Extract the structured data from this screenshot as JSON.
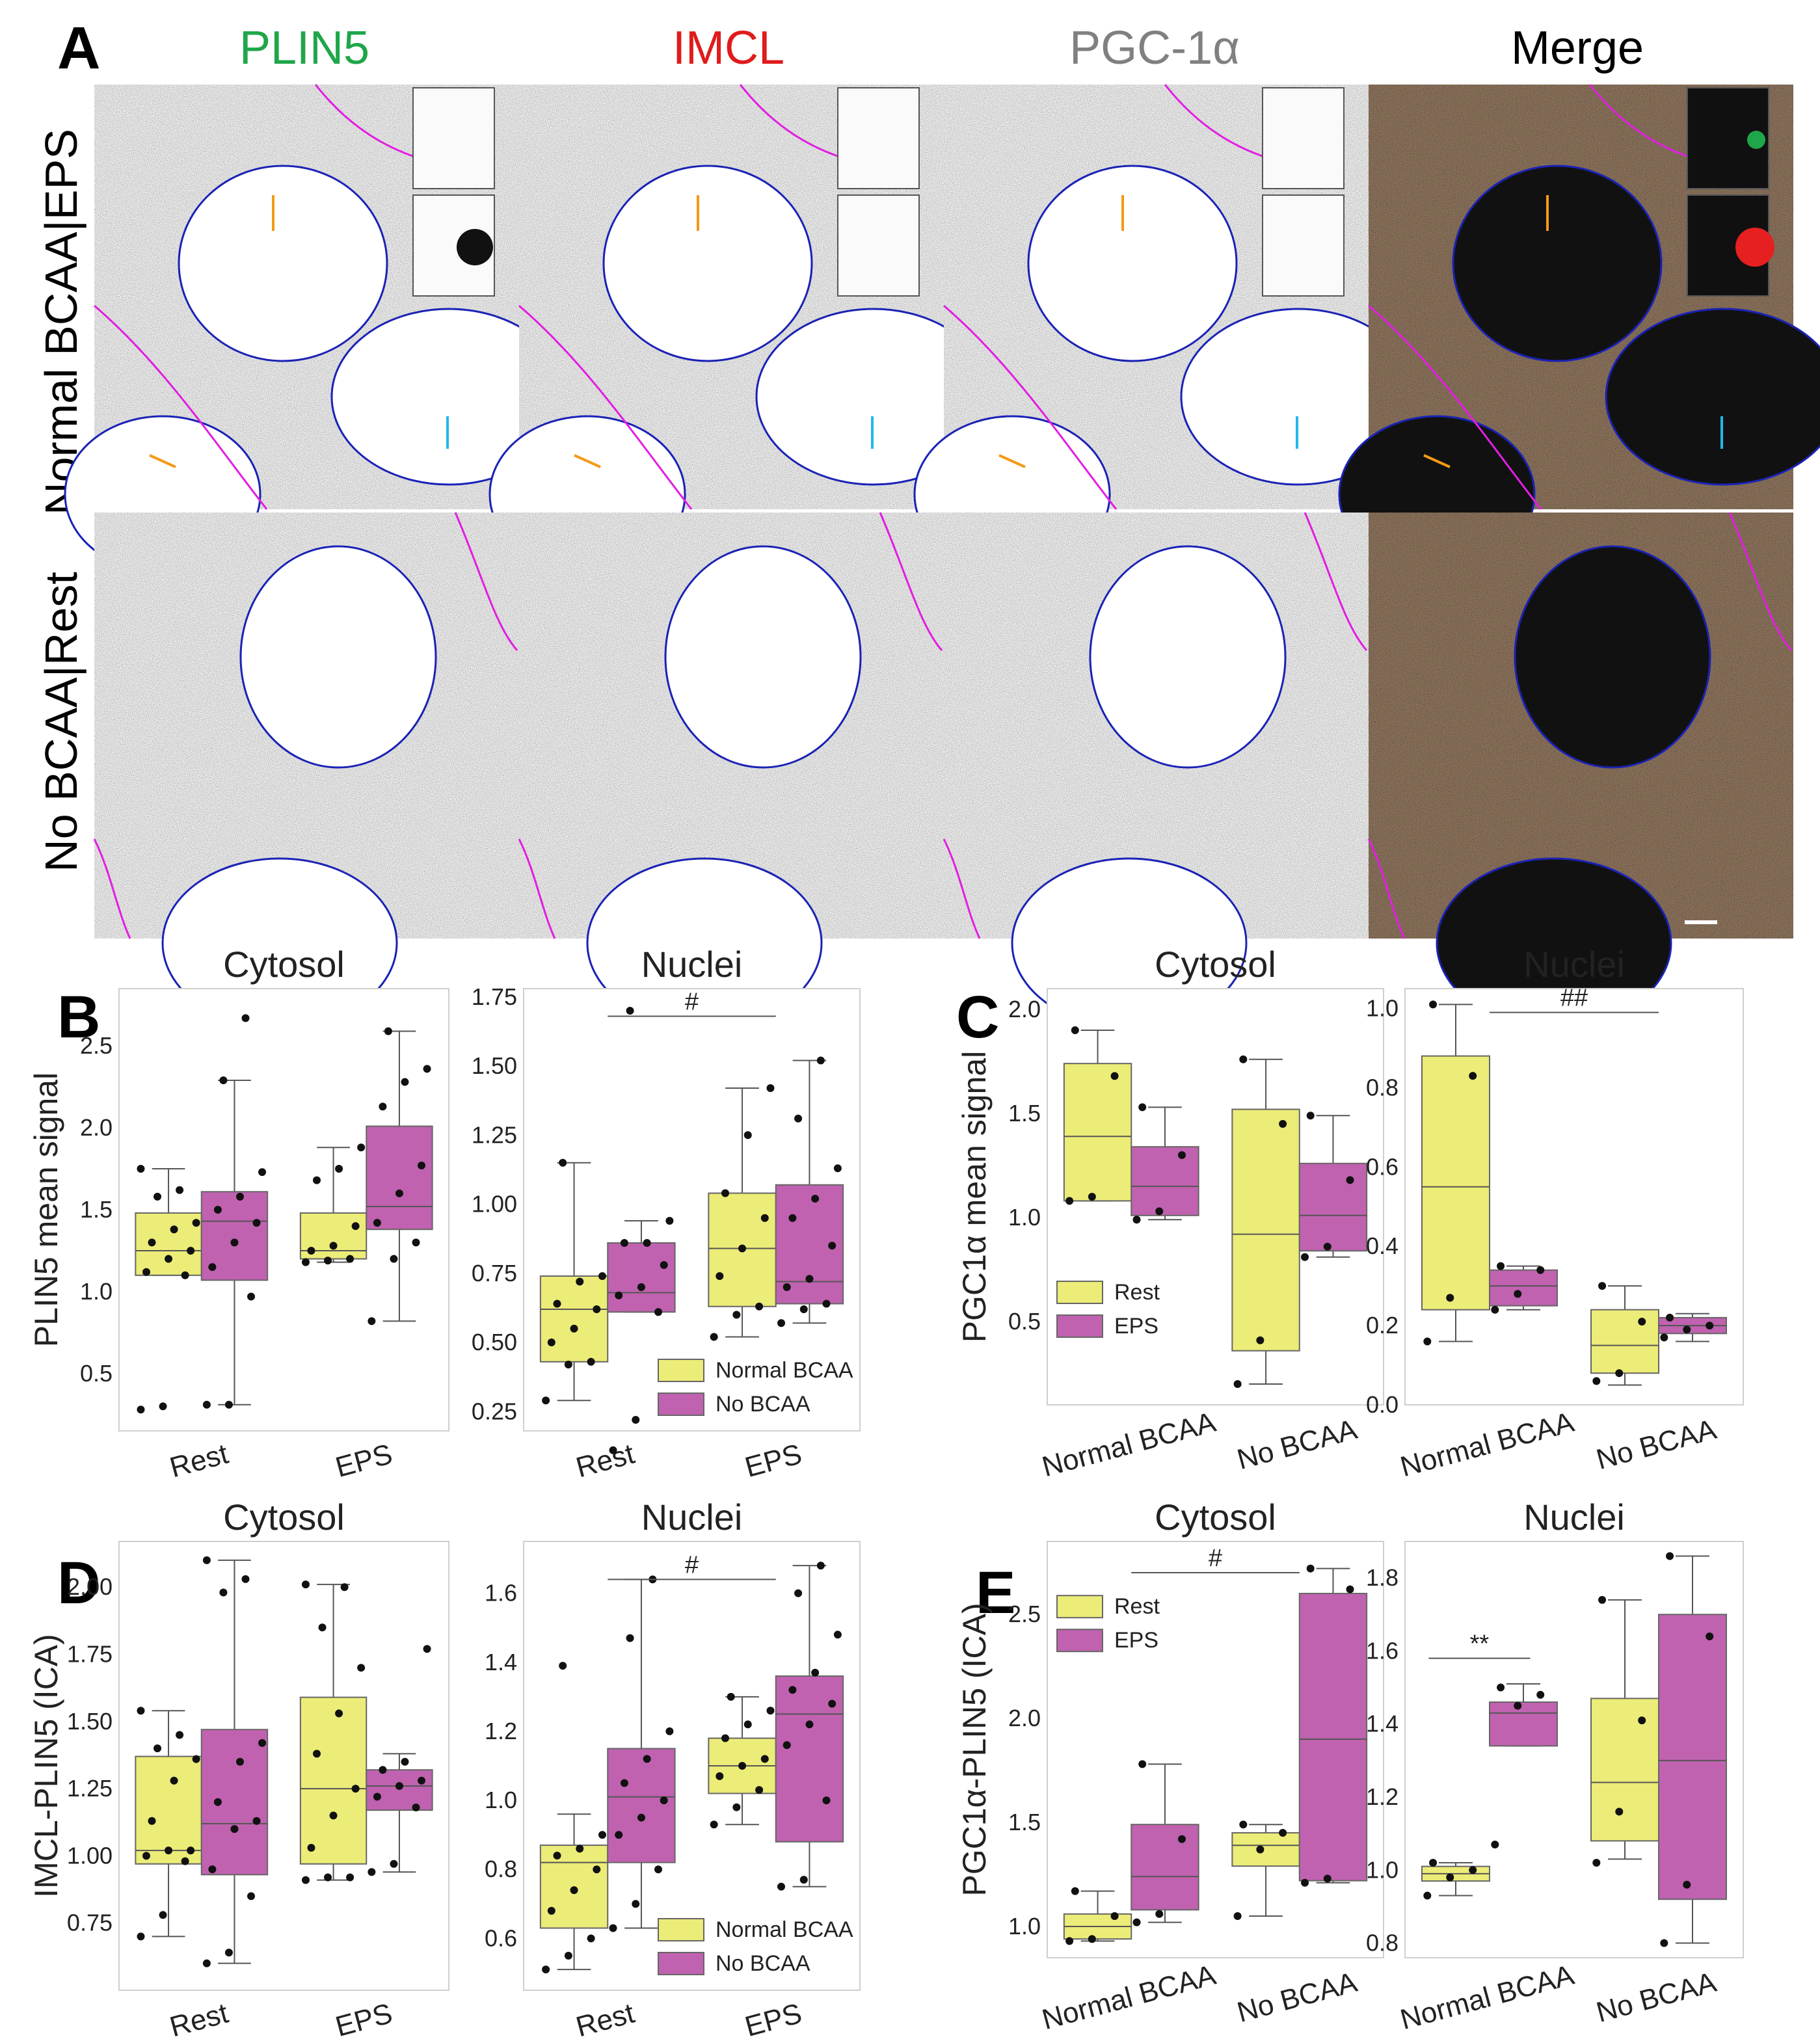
{
  "figure": {
    "panel_labels": [
      "A",
      "B",
      "C",
      "D",
      "E"
    ],
    "columns": [
      {
        "label": "PLIN5",
        "color": "#1fa64a"
      },
      {
        "label": "IMCL",
        "color": "#e01b1b"
      },
      {
        "label": "PGC-1α",
        "color": "#808080"
      },
      {
        "label": "Merge",
        "color": "#000000"
      }
    ],
    "rows": [
      "Normal BCAA|EPS",
      "No BCAA|Rest"
    ],
    "colors": {
      "yellow": "#ecec78",
      "magenta": "#c062b0",
      "nucleus": "#1a22b5",
      "membrane": "#e21ee2",
      "orange": "#f39a18",
      "cyan": "#22b8e8"
    }
  },
  "chart_data": [
    {
      "id": "B-cyto",
      "panel": "B",
      "type": "box",
      "title": "Cytosol",
      "ylabel": "PLIN5 mean signal",
      "categories": [
        "Rest",
        "EPS"
      ],
      "ylim": [
        0.15,
        2.85
      ],
      "yticks": [
        0.5,
        1.0,
        1.5,
        2.0,
        2.5
      ],
      "series": [
        {
          "name": "Normal BCAA",
          "boxes": [
            {
              "q1": 1.1,
              "median": 1.25,
              "q3": 1.48,
              "whislo": 1.1,
              "whishi": 1.75,
              "points": [
                0.28,
                0.3,
                1.1,
                1.12,
                1.2,
                1.25,
                1.3,
                1.38,
                1.42,
                1.58,
                1.62,
                1.75
              ]
            },
            {
              "q1": 1.2,
              "median": 1.25,
              "q3": 1.48,
              "whislo": 1.18,
              "whishi": 1.88,
              "points": [
                1.18,
                1.19,
                1.2,
                1.25,
                1.28,
                1.4,
                1.68,
                1.75,
                1.88
              ]
            }
          ]
        },
        {
          "name": "No BCAA",
          "boxes": [
            {
              "q1": 1.07,
              "median": 1.43,
              "q3": 1.61,
              "whislo": 0.31,
              "whishi": 2.29,
              "points": [
                0.31,
                0.31,
                0.97,
                1.15,
                1.3,
                1.42,
                1.5,
                1.58,
                1.73,
                2.29,
                2.67
              ]
            },
            {
              "q1": 1.38,
              "median": 1.52,
              "q3": 2.01,
              "whislo": 0.82,
              "whishi": 2.59,
              "points": [
                0.82,
                1.2,
                1.3,
                1.42,
                1.6,
                1.77,
                2.13,
                2.28,
                2.36,
                2.59
              ]
            }
          ]
        }
      ]
    },
    {
      "id": "B-nuc",
      "panel": "B",
      "type": "box",
      "title": "Nuclei",
      "ylabel": "",
      "categories": [
        "Rest",
        "EPS"
      ],
      "ylim": [
        0.18,
        1.78
      ],
      "yticks": [
        0.25,
        0.5,
        0.75,
        1.0,
        1.25,
        1.5,
        1.75
      ],
      "legend": [
        "Normal BCAA",
        "No BCAA"
      ],
      "annotation": {
        "text": "#",
        "from": 0,
        "to": 1,
        "y": 1.68
      },
      "series": [
        {
          "name": "Normal BCAA",
          "boxes": [
            {
              "q1": 0.43,
              "median": 0.62,
              "q3": 0.74,
              "whislo": 0.29,
              "whishi": 1.15,
              "points": [
                0.29,
                0.42,
                0.43,
                0.5,
                0.55,
                0.62,
                0.64,
                0.72,
                0.74,
                1.15
              ]
            },
            {
              "q1": 0.63,
              "median": 0.84,
              "q3": 1.04,
              "whislo": 0.52,
              "whishi": 1.42,
              "points": [
                0.52,
                0.6,
                0.63,
                0.74,
                0.84,
                0.95,
                1.04,
                1.25,
                1.42
              ]
            }
          ]
        },
        {
          "name": "No BCAA",
          "boxes": [
            {
              "q1": 0.61,
              "median": 0.68,
              "q3": 0.86,
              "whislo": 0.61,
              "whishi": 0.94,
              "points": [
                0.11,
                0.22,
                0.61,
                0.67,
                0.7,
                0.78,
                0.86,
                0.86,
                0.94,
                1.7
              ]
            },
            {
              "q1": 0.64,
              "median": 0.72,
              "q3": 1.07,
              "whislo": 0.57,
              "whishi": 1.52,
              "points": [
                0.57,
                0.62,
                0.64,
                0.7,
                0.73,
                0.85,
                0.95,
                1.02,
                1.13,
                1.31,
                1.52
              ]
            }
          ]
        }
      ]
    },
    {
      "id": "C-cyto",
      "panel": "C",
      "type": "box",
      "title": "Cytosol",
      "ylabel": "PGC1α mean signal",
      "categories": [
        "Normal BCAA",
        "No BCAA"
      ],
      "ylim": [
        0.1,
        2.1
      ],
      "yticks": [
        0.5,
        1.0,
        1.5,
        2.0
      ],
      "legend": [
        "Rest",
        "EPS"
      ],
      "series": [
        {
          "name": "Rest",
          "boxes": [
            {
              "q1": 1.08,
              "median": 1.39,
              "q3": 1.74,
              "whislo": 1.08,
              "whishi": 1.9,
              "points": [
                1.08,
                1.1,
                1.68,
                1.9
              ]
            },
            {
              "q1": 0.36,
              "median": 0.92,
              "q3": 1.52,
              "whislo": 0.2,
              "whishi": 1.76,
              "points": [
                0.2,
                0.41,
                1.45,
                1.76
              ]
            }
          ]
        },
        {
          "name": "EPS",
          "boxes": [
            {
              "q1": 1.01,
              "median": 1.15,
              "q3": 1.34,
              "whislo": 0.99,
              "whishi": 1.53,
              "points": [
                0.99,
                1.03,
                1.3,
                1.53
              ]
            },
            {
              "q1": 0.84,
              "median": 1.01,
              "q3": 1.26,
              "whislo": 0.81,
              "whishi": 1.49,
              "points": [
                0.81,
                0.86,
                1.18,
                1.49
              ]
            }
          ]
        }
      ]
    },
    {
      "id": "C-nuc",
      "panel": "C",
      "type": "box",
      "title": "Nuclei",
      "ylabel": "",
      "categories": [
        "Normal BCAA",
        "No BCAA"
      ],
      "ylim": [
        0.0,
        1.05
      ],
      "yticks": [
        0.0,
        0.2,
        0.4,
        0.6,
        0.8,
        1.0
      ],
      "annotation": {
        "text": "##",
        "from": 0,
        "to": 1,
        "y": 0.99
      },
      "series": [
        {
          "name": "Rest",
          "boxes": [
            {
              "q1": 0.24,
              "median": 0.55,
              "q3": 0.88,
              "whislo": 0.16,
              "whishi": 1.01,
              "points": [
                0.16,
                0.27,
                0.83,
                1.01
              ]
            },
            {
              "q1": 0.08,
              "median": 0.15,
              "q3": 0.24,
              "whislo": 0.05,
              "whishi": 0.3,
              "points": [
                0.06,
                0.08,
                0.21,
                0.3
              ]
            }
          ]
        },
        {
          "name": "EPS",
          "boxes": [
            {
              "q1": 0.25,
              "median": 0.3,
              "q3": 0.34,
              "whislo": 0.24,
              "whishi": 0.35,
              "points": [
                0.24,
                0.28,
                0.34,
                0.35
              ]
            },
            {
              "q1": 0.18,
              "median": 0.2,
              "q3": 0.22,
              "whislo": 0.16,
              "whishi": 0.23,
              "points": [
                0.17,
                0.19,
                0.2,
                0.22
              ]
            }
          ]
        }
      ]
    },
    {
      "id": "D-cyto",
      "panel": "D",
      "type": "box",
      "title": "Cytosol",
      "ylabel": "IMCL-PLIN5 (ICA)",
      "categories": [
        "Rest",
        "EPS"
      ],
      "ylim": [
        0.5,
        2.17
      ],
      "yticks": [
        0.75,
        1.0,
        1.25,
        1.5,
        1.75,
        2.0
      ],
      "series": [
        {
          "name": "Normal BCAA",
          "boxes": [
            {
              "q1": 0.97,
              "median": 1.02,
              "q3": 1.37,
              "whislo": 0.7,
              "whishi": 1.54,
              "points": [
                0.7,
                0.78,
                0.98,
                1.0,
                1.02,
                1.02,
                1.13,
                1.28,
                1.36,
                1.4,
                1.45,
                1.54
              ]
            },
            {
              "q1": 0.97,
              "median": 1.25,
              "q3": 1.59,
              "whislo": 0.91,
              "whishi": 2.01,
              "points": [
                0.91,
                0.92,
                0.92,
                1.03,
                1.15,
                1.25,
                1.38,
                1.53,
                1.7,
                1.85,
                2.0,
                2.01
              ]
            }
          ]
        },
        {
          "name": "No BCAA",
          "boxes": [
            {
              "q1": 0.93,
              "median": 1.12,
              "q3": 1.47,
              "whislo": 0.6,
              "whishi": 2.1,
              "points": [
                0.6,
                0.64,
                0.85,
                0.95,
                1.1,
                1.13,
                1.2,
                1.35,
                1.42,
                1.98,
                2.03,
                2.1
              ]
            },
            {
              "q1": 1.17,
              "median": 1.26,
              "q3": 1.32,
              "whislo": 0.94,
              "whishi": 1.38,
              "points": [
                0.94,
                0.97,
                1.18,
                1.22,
                1.26,
                1.28,
                1.32,
                1.35,
                1.77
              ]
            }
          ]
        }
      ]
    },
    {
      "id": "D-nuc",
      "panel": "D",
      "type": "box",
      "title": "Nuclei",
      "ylabel": "",
      "categories": [
        "Rest",
        "EPS"
      ],
      "ylim": [
        0.45,
        1.75
      ],
      "yticks": [
        0.6,
        0.8,
        1.0,
        1.2,
        1.4,
        1.6
      ],
      "legend": [
        "Normal BCAA",
        "No BCAA"
      ],
      "annotation": {
        "text": "#",
        "from": 0,
        "to": 1,
        "y": 1.64
      },
      "series": [
        {
          "name": "Normal BCAA",
          "boxes": [
            {
              "q1": 0.63,
              "median": 0.82,
              "q3": 0.87,
              "whislo": 0.51,
              "whishi": 0.96,
              "points": [
                0.51,
                0.55,
                0.6,
                0.68,
                0.74,
                0.8,
                0.84,
                0.86,
                0.9,
                1.39
              ]
            },
            {
              "q1": 1.02,
              "median": 1.1,
              "q3": 1.18,
              "whislo": 0.93,
              "whishi": 1.3,
              "points": [
                0.93,
                0.98,
                1.03,
                1.07,
                1.1,
                1.12,
                1.18,
                1.22,
                1.26,
                1.3
              ]
            }
          ]
        },
        {
          "name": "No BCAA",
          "boxes": [
            {
              "q1": 0.82,
              "median": 1.01,
              "q3": 1.15,
              "whislo": 0.63,
              "whishi": 1.64,
              "points": [
                0.63,
                0.7,
                0.8,
                0.9,
                0.95,
                1.0,
                1.05,
                1.12,
                1.2,
                1.47,
                1.64
              ]
            },
            {
              "q1": 0.88,
              "median": 1.25,
              "q3": 1.36,
              "whislo": 0.75,
              "whishi": 1.68,
              "points": [
                0.75,
                0.77,
                1.0,
                1.16,
                1.22,
                1.28,
                1.32,
                1.37,
                1.48,
                1.6,
                1.68
              ]
            }
          ]
        }
      ]
    },
    {
      "id": "E-cyto",
      "panel": "E",
      "type": "box",
      "title": "Cytosol",
      "ylabel": "PGC1α-PLIN5 (ICA)",
      "categories": [
        "Normal BCAA",
        "No BCAA"
      ],
      "ylim": [
        0.85,
        2.85
      ],
      "yticks": [
        1.0,
        1.5,
        2.0,
        2.5
      ],
      "legend": [
        "Rest",
        "EPS"
      ],
      "annotation": {
        "text": "#",
        "from": 0,
        "to": 1,
        "y": 2.7
      },
      "series": [
        {
          "name": "Rest",
          "boxes": [
            {
              "q1": 0.94,
              "median": 1.0,
              "q3": 1.06,
              "whislo": 0.93,
              "whishi": 1.17,
              "points": [
                0.93,
                0.94,
                1.05,
                1.17
              ]
            },
            {
              "q1": 1.29,
              "median": 1.39,
              "q3": 1.45,
              "whislo": 1.05,
              "whishi": 1.49,
              "points": [
                1.05,
                1.37,
                1.45,
                1.49
              ]
            }
          ]
        },
        {
          "name": "EPS",
          "boxes": [
            {
              "q1": 1.08,
              "median": 1.24,
              "q3": 1.49,
              "whislo": 1.02,
              "whishi": 1.78,
              "points": [
                1.02,
                1.06,
                1.42,
                1.78
              ]
            },
            {
              "q1": 1.22,
              "median": 1.9,
              "q3": 2.6,
              "whislo": 1.21,
              "whishi": 2.72,
              "points": [
                1.21,
                1.23,
                2.62,
                2.72
              ]
            }
          ]
        }
      ]
    },
    {
      "id": "E-nuc",
      "panel": "E",
      "type": "box",
      "title": "Nuclei",
      "ylabel": "",
      "categories": [
        "Normal BCAA",
        "No BCAA"
      ],
      "ylim": [
        0.76,
        1.9
      ],
      "yticks": [
        0.8,
        1.0,
        1.2,
        1.4,
        1.6,
        1.8
      ],
      "annotation": {
        "text": "**",
        "from": 0,
        "to": 0,
        "y": 1.58,
        "local": true
      },
      "series": [
        {
          "name": "Rest",
          "boxes": [
            {
              "q1": 0.97,
              "median": 0.99,
              "q3": 1.01,
              "whislo": 0.93,
              "whishi": 1.02,
              "points": [
                0.93,
                0.98,
                1.0,
                1.02
              ]
            },
            {
              "q1": 1.08,
              "median": 1.24,
              "q3": 1.47,
              "whislo": 1.03,
              "whishi": 1.74,
              "points": [
                1.02,
                1.16,
                1.41,
                1.74
              ]
            }
          ]
        },
        {
          "name": "EPS",
          "boxes": [
            {
              "q1": 1.34,
              "median": 1.43,
              "q3": 1.46,
              "whislo": 1.34,
              "whishi": 1.51,
              "points": [
                1.07,
                1.45,
                1.48,
                1.5
              ]
            },
            {
              "q1": 0.92,
              "median": 1.3,
              "q3": 1.7,
              "whislo": 0.8,
              "whishi": 1.86,
              "points": [
                0.8,
                0.96,
                1.64,
                1.86
              ]
            }
          ]
        }
      ]
    }
  ]
}
